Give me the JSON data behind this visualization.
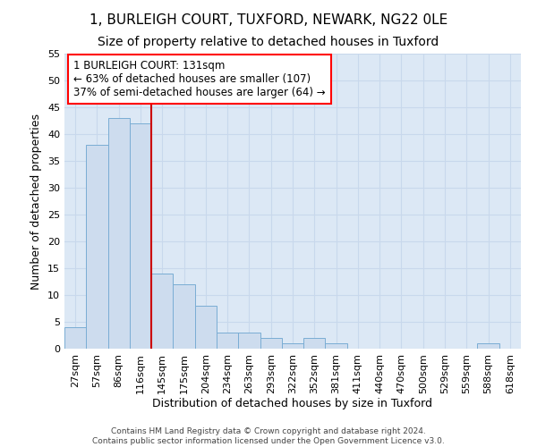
{
  "title": "1, BURLEIGH COURT, TUXFORD, NEWARK, NG22 0LE",
  "subtitle": "Size of property relative to detached houses in Tuxford",
  "xlabel": "Distribution of detached houses by size in Tuxford",
  "ylabel": "Number of detached properties",
  "categories": [
    "27sqm",
    "57sqm",
    "86sqm",
    "116sqm",
    "145sqm",
    "175sqm",
    "204sqm",
    "234sqm",
    "263sqm",
    "293sqm",
    "322sqm",
    "352sqm",
    "381sqm",
    "411sqm",
    "440sqm",
    "470sqm",
    "500sqm",
    "529sqm",
    "559sqm",
    "588sqm",
    "618sqm"
  ],
  "values": [
    4,
    38,
    43,
    42,
    14,
    12,
    8,
    3,
    3,
    2,
    1,
    2,
    1,
    0,
    0,
    0,
    0,
    0,
    0,
    1,
    0
  ],
  "bar_color": "#cddcee",
  "bar_edge_color": "#7aadd4",
  "vline_x_index": 3,
  "annotation_text_line1": "1 BURLEIGH COURT: 131sqm",
  "annotation_text_line2": "← 63% of detached houses are smaller (107)",
  "annotation_text_line3": "37% of semi-detached houses are larger (64) →",
  "annotation_box_facecolor": "white",
  "annotation_box_edgecolor": "red",
  "vline_color": "#cc0000",
  "ylim": [
    0,
    55
  ],
  "yticks": [
    0,
    5,
    10,
    15,
    20,
    25,
    30,
    35,
    40,
    45,
    50,
    55
  ],
  "grid_color": "#c8d8ec",
  "background_color": "#dce8f5",
  "footer_line1": "Contains HM Land Registry data © Crown copyright and database right 2024.",
  "footer_line2": "Contains public sector information licensed under the Open Government Licence v3.0.",
  "title_fontsize": 11,
  "subtitle_fontsize": 10,
  "axis_label_fontsize": 9,
  "tick_fontsize": 8,
  "annotation_fontsize": 8.5,
  "footer_fontsize": 6.5
}
